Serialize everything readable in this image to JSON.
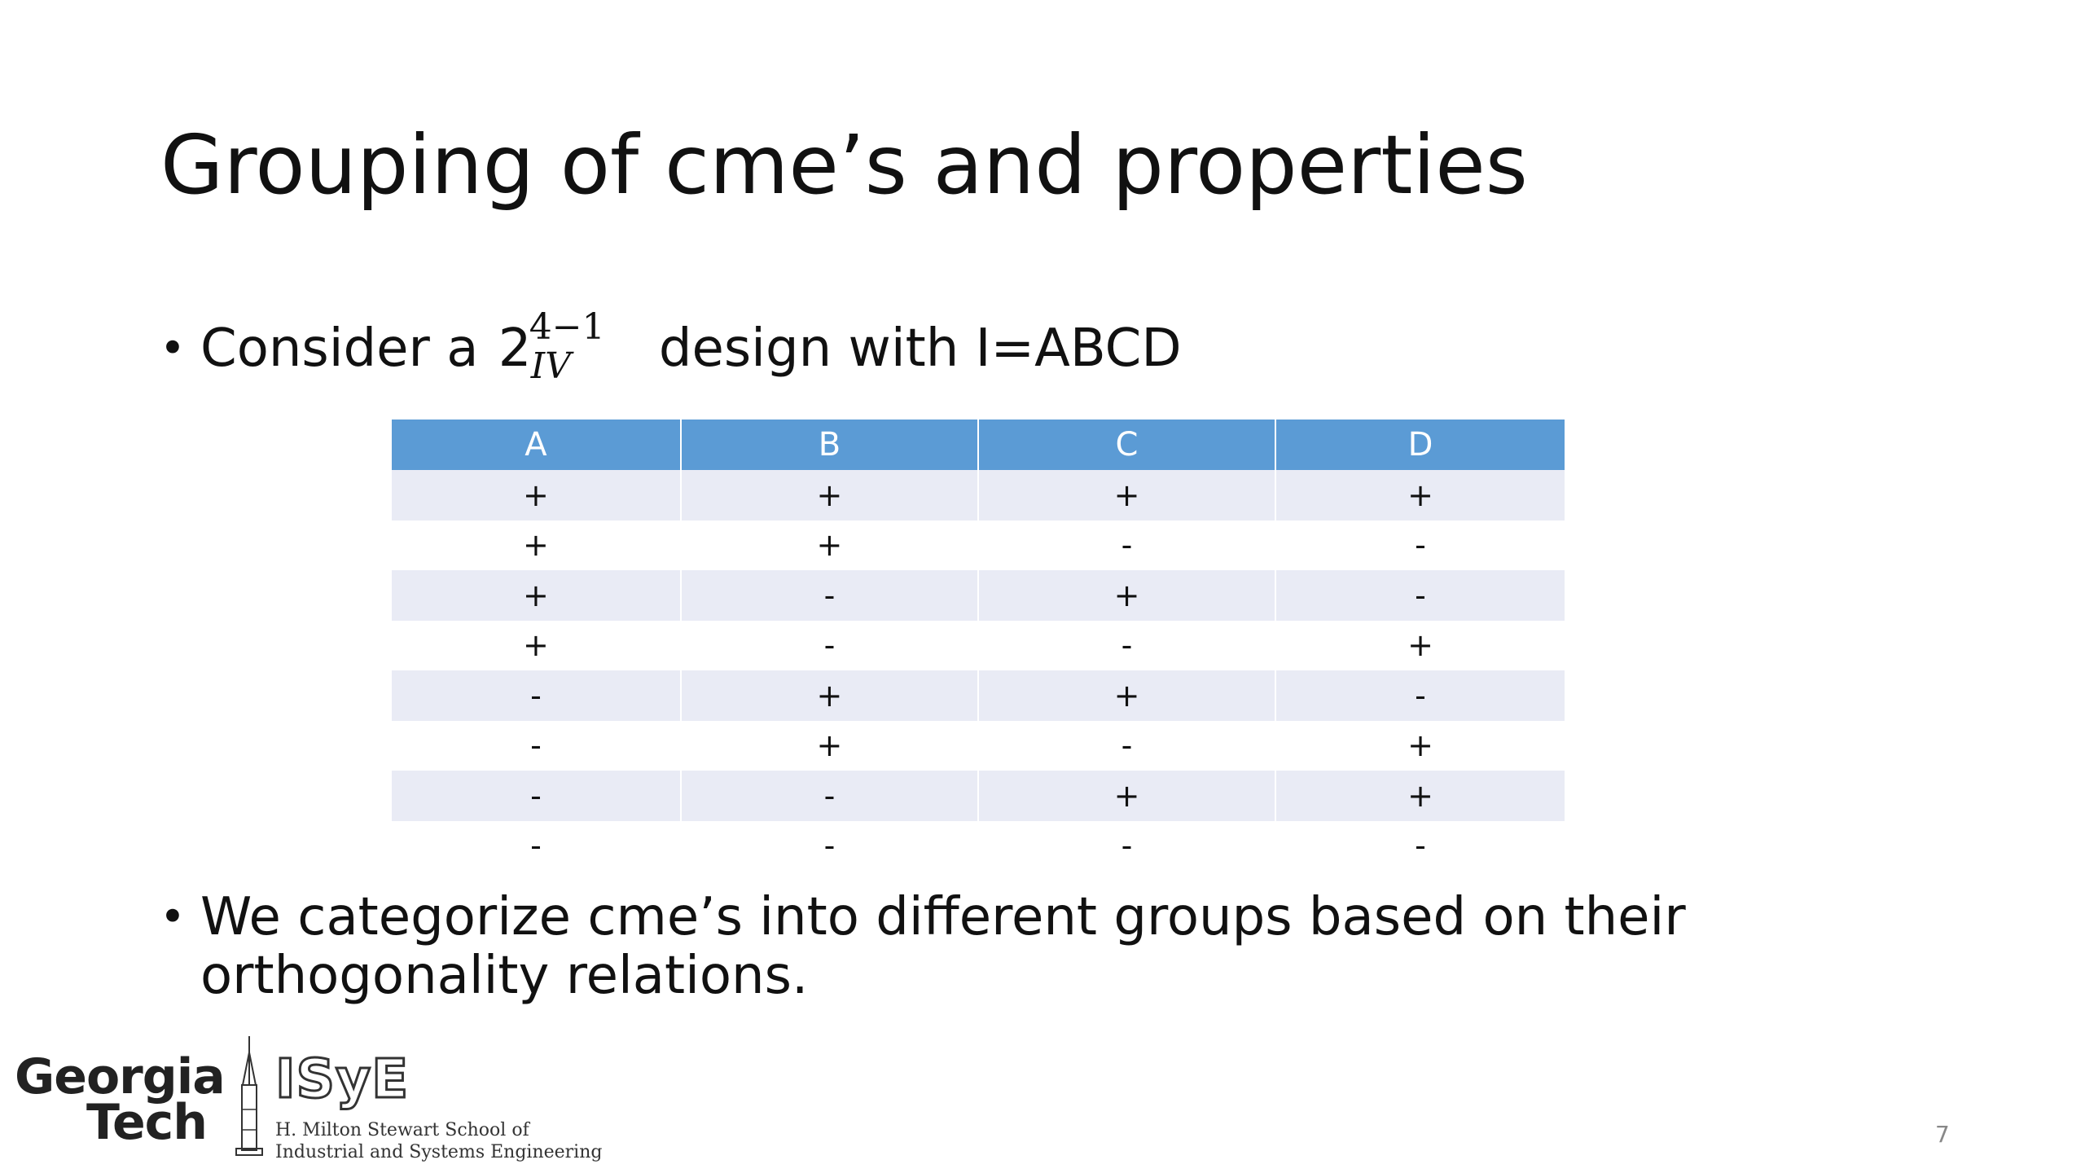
{
  "slide": {
    "title": "Grouping of cme’s and properties",
    "bullet1": {
      "prefix": "Consider a ",
      "math_base": "2",
      "math_superscript": "4−1",
      "math_subscript": "IV",
      "suffix": " design with I=ABCD"
    },
    "table": {
      "headers": [
        "A",
        "B",
        "C",
        "D"
      ],
      "rows": [
        [
          "+",
          "+",
          "+",
          "+"
        ],
        [
          "+",
          "+",
          "-",
          "-"
        ],
        [
          "+",
          "-",
          "+",
          "-"
        ],
        [
          "+",
          "-",
          "-",
          "+"
        ],
        [
          "-",
          "+",
          "+",
          "-"
        ],
        [
          "-",
          "+",
          "-",
          "+"
        ],
        [
          "-",
          "-",
          "+",
          "+"
        ],
        [
          "-",
          "-",
          "-",
          "-"
        ]
      ]
    },
    "bullet2": {
      "line1": "We categorize cme’s into different groups based on their",
      "line2": "orthogonality relations."
    },
    "logo": {
      "georgia": "Georgia",
      "tech": "Tech",
      "isye": "ISyE",
      "school_line1": "H. Milton Stewart School of",
      "school_line2": "Industrial and Systems Engineering"
    },
    "page_number": "7",
    "colors": {
      "header_fill": "#5b9bd5",
      "row_band": "#e9ebf5"
    }
  }
}
